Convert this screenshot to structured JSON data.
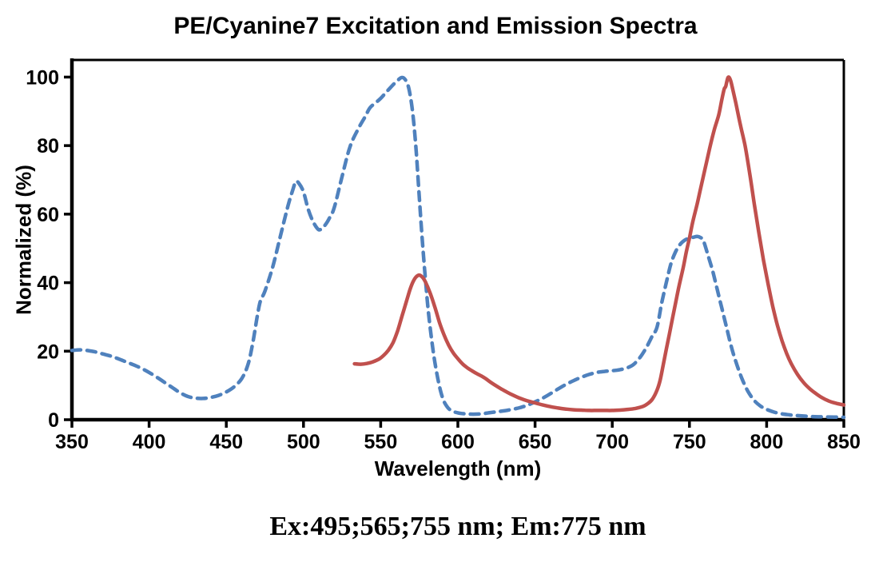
{
  "chart": {
    "title": "PE/Cyanine7 Excitation and Emission Spectra",
    "x_axis_label": "Wavelength (nm)",
    "y_axis_label": "Normalized (%)"
  },
  "caption": {
    "text": "Ex:495;565;755 nm; Em:775 nm"
  },
  "colors": {
    "excitation": "#4F81BD",
    "emission": "#C0504D",
    "axis": "#000000"
  },
  "chart_data": {
    "type": "line",
    "title": "PE/Cyanine7 Excitation and Emission Spectra",
    "xlabel": "Wavelength (nm)",
    "ylabel": "Normalized (%)",
    "xlim": [
      350,
      850
    ],
    "ylim": [
      0,
      100
    ],
    "x_ticks": [
      350,
      400,
      450,
      500,
      550,
      600,
      650,
      700,
      750,
      800,
      850
    ],
    "y_ticks": [
      0,
      20,
      40,
      60,
      80,
      100
    ],
    "grid": false,
    "legend": "none",
    "annotations": [
      "Ex:495;565;755 nm; Em:775 nm"
    ],
    "series": [
      {
        "name": "Excitation",
        "style": "dashed",
        "color": "#4F81BD",
        "peaks_nm": [
          495,
          565,
          755
        ],
        "x": [
          350,
          355,
          360,
          365,
          370,
          375,
          380,
          385,
          390,
          395,
          400,
          405,
          410,
          415,
          420,
          425,
          430,
          435,
          440,
          445,
          450,
          455,
          460,
          464,
          467,
          470,
          472,
          475,
          480,
          485,
          490,
          493,
          495,
          497,
          500,
          503,
          506,
          509,
          511,
          514,
          517,
          520,
          525,
          530,
          535,
          540,
          543,
          547,
          550,
          555,
          560,
          564,
          567,
          569,
          571,
          573,
          575,
          577,
          579,
          581,
          584,
          587,
          590,
          593,
          596,
          600,
          605,
          610,
          615,
          620,
          625,
          630,
          635,
          640,
          645,
          650,
          655,
          660,
          665,
          670,
          675,
          680,
          685,
          690,
          695,
          700,
          705,
          710,
          714,
          718,
          722,
          726,
          729,
          732,
          735,
          738,
          741,
          744,
          747,
          750,
          753,
          755,
          757,
          759,
          762,
          765,
          768,
          771,
          774,
          777,
          780,
          784,
          788,
          792,
          796,
          800,
          805,
          810,
          815,
          820,
          830,
          840,
          850
        ],
        "y": [
          20.2,
          20.4,
          20.2,
          19.8,
          19.2,
          18.6,
          17.8,
          16.9,
          16.0,
          15.0,
          13.8,
          12.4,
          10.9,
          9.4,
          7.9,
          6.8,
          6.3,
          6.2,
          6.5,
          7.1,
          8.1,
          9.6,
          12.0,
          16.0,
          22.0,
          30.0,
          34.5,
          37.5,
          44.5,
          53.5,
          62.5,
          67.0,
          69.5,
          69.0,
          66.5,
          61.5,
          58.0,
          55.8,
          55.5,
          56.8,
          59.0,
          62.0,
          71.0,
          79.5,
          84.5,
          88.5,
          91.0,
          92.6,
          93.8,
          96.3,
          98.6,
          99.9,
          98.4,
          95.0,
          88.5,
          78.5,
          65.0,
          52.0,
          41.0,
          31.0,
          20.0,
          12.0,
          6.5,
          3.8,
          2.6,
          2.0,
          1.7,
          1.6,
          1.7,
          2.0,
          2.3,
          2.6,
          3.0,
          3.5,
          4.2,
          5.2,
          6.3,
          7.6,
          9.0,
          10.3,
          11.4,
          12.4,
          13.2,
          13.8,
          14.1,
          14.3,
          14.6,
          15.2,
          16.2,
          18.2,
          21.0,
          24.5,
          27.0,
          34.0,
          40.0,
          45.5,
          49.0,
          51.2,
          52.4,
          53.0,
          53.3,
          53.5,
          53.2,
          52.3,
          48.0,
          43.5,
          38.0,
          32.5,
          27.0,
          21.5,
          17.0,
          12.0,
          8.2,
          5.6,
          4.0,
          3.0,
          2.2,
          1.7,
          1.4,
          1.2,
          0.9,
          0.8,
          0.7
        ]
      },
      {
        "name": "Emission",
        "style": "solid",
        "color": "#C0504D",
        "peaks_nm": [
          775
        ],
        "x": [
          533,
          537,
          541,
          545,
          549,
          552,
          555,
          558,
          561,
          564,
          567,
          569,
          571,
          573,
          575,
          577,
          579,
          582,
          585,
          588,
          591,
          594,
          597,
          600,
          603,
          606,
          609,
          612,
          615,
          618,
          621,
          624,
          628,
          632,
          636,
          640,
          645,
          650,
          655,
          660,
          665,
          670,
          675,
          680,
          685,
          690,
          695,
          700,
          705,
          710,
          715,
          720,
          723,
          726,
          729,
          731,
          733,
          735,
          737,
          739,
          741,
          743,
          746,
          748,
          750,
          752,
          755,
          757,
          760,
          763,
          766,
          769,
          771,
          772.5,
          773.5,
          775,
          776.5,
          778,
          780,
          783,
          786,
          789,
          792,
          795,
          798,
          801,
          804,
          807,
          810,
          813,
          816,
          820,
          824,
          828,
          832,
          836,
          840,
          845,
          850
        ],
        "y": [
          16.3,
          16.2,
          16.4,
          16.9,
          17.7,
          18.8,
          20.3,
          22.5,
          26.0,
          30.5,
          35.0,
          38.0,
          40.3,
          41.7,
          42.2,
          41.6,
          40.2,
          37.0,
          33.0,
          28.5,
          24.8,
          21.8,
          19.5,
          17.8,
          16.3,
          15.2,
          14.3,
          13.5,
          12.8,
          12.0,
          11.0,
          10.1,
          9.0,
          8.0,
          7.1,
          6.3,
          5.5,
          4.9,
          4.3,
          3.8,
          3.4,
          3.1,
          2.9,
          2.8,
          2.7,
          2.7,
          2.7,
          2.7,
          2.8,
          3.0,
          3.3,
          3.9,
          4.7,
          6.0,
          8.6,
          11.5,
          16.0,
          20.5,
          25.0,
          29.5,
          34.0,
          38.5,
          44.5,
          49.0,
          53.0,
          57.5,
          63.0,
          67.0,
          73.0,
          79.0,
          84.5,
          89.0,
          93.5,
          96.5,
          97.3,
          99.9,
          99.2,
          96.5,
          92.5,
          86.0,
          80.0,
          72.0,
          63.0,
          54.5,
          46.5,
          39.5,
          33.0,
          27.5,
          23.0,
          19.3,
          16.3,
          13.2,
          10.8,
          9.0,
          7.6,
          6.4,
          5.5,
          4.8,
          4.3
        ]
      }
    ]
  }
}
